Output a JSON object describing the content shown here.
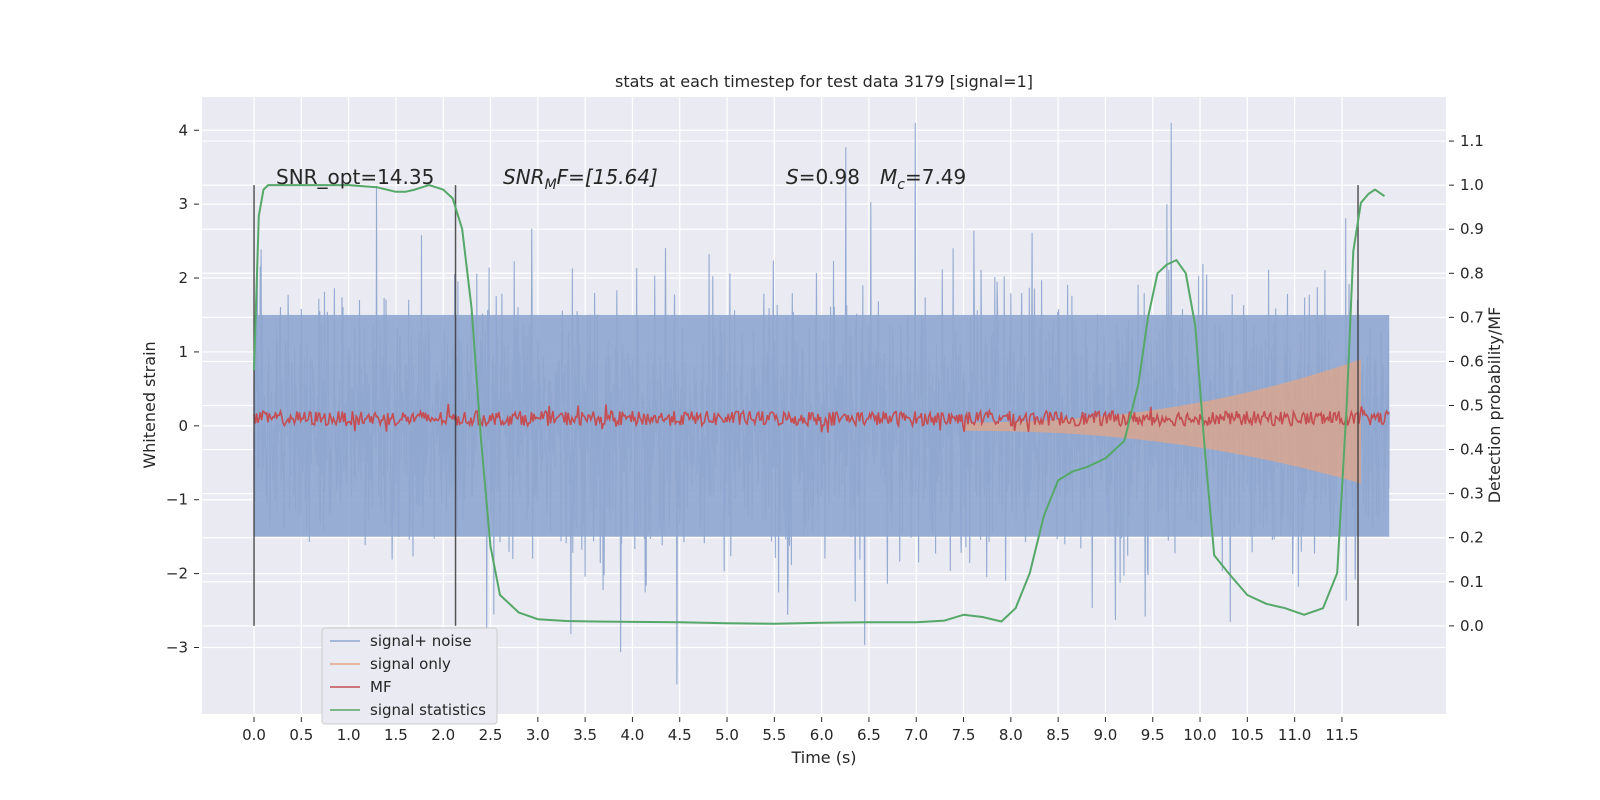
{
  "chart_data": {
    "type": "line",
    "title": "stats at each timestep for test data 3179 [signal=1]",
    "xlabel": "Time (s)",
    "ylabel_left": "Whitened strain",
    "ylabel_right": "Detection probability/MF",
    "xlim": [
      -0.55,
      12.6
    ],
    "ylim_left": [
      -3.9,
      4.45
    ],
    "ylim_right": [
      -0.2,
      1.2
    ],
    "grid": true,
    "legend_position": "lower-left",
    "x_ticks": [
      "0.0",
      "0.5",
      "1.0",
      "1.5",
      "2.0",
      "2.5",
      "3.0",
      "3.5",
      "4.0",
      "4.5",
      "5.0",
      "5.5",
      "6.0",
      "6.5",
      "7.0",
      "7.5",
      "8.0",
      "8.5",
      "9.0",
      "9.5",
      "10.0",
      "10.5",
      "11.0",
      "11.5"
    ],
    "y_ticks_left": [
      "4",
      "3",
      "2",
      "1",
      "0",
      "−1",
      "−2",
      "−3"
    ],
    "y_ticks_right": [
      "1.1",
      "1.0",
      "0.9",
      "0.8",
      "0.7",
      "0.6",
      "0.5",
      "0.4",
      "0.3",
      "0.2",
      "0.1",
      "0.0"
    ],
    "annotations": {
      "snr_opt": "SNR_opt=14.35",
      "snr_mf_base": "SNR",
      "snr_mf_sub": "M",
      "snr_mf_rest": "F=[15.64]",
      "s_base": "S",
      "s_val": "=0.98",
      "mc_base": "M",
      "mc_sub": "c",
      "mc_val": "=7.49"
    },
    "vertical_markers_s": [
      0.0,
      2.13,
      11.67
    ],
    "series": [
      {
        "name": "signal+ noise",
        "color": "#8fa6cf",
        "axis": "left",
        "envelope": {
          "x_range": [
            0.0,
            12.0
          ],
          "min": -3.5,
          "max": 4.1
        }
      },
      {
        "name": "signal only",
        "color": "#e8a582",
        "axis": "left",
        "x_range": [
          7.5,
          11.7
        ],
        "amplitude_start": 0.05,
        "amplitude_end": 1.0
      },
      {
        "name": "MF",
        "color": "#c44e52",
        "axis": "left",
        "x_range": [
          0.0,
          12.0
        ],
        "center": 0.1,
        "band": 0.1
      },
      {
        "name": "signal statistics",
        "color": "#55a868",
        "axis": "right",
        "x": [
          0.0,
          0.05,
          0.1,
          0.15,
          0.25,
          0.4,
          0.7,
          1.0,
          1.3,
          1.5,
          1.6,
          1.7,
          1.85,
          2.0,
          2.1,
          2.2,
          2.3,
          2.4,
          2.5,
          2.6,
          2.8,
          3.0,
          3.3,
          3.6,
          4.0,
          4.5,
          5.0,
          5.5,
          6.0,
          6.5,
          7.0,
          7.3,
          7.5,
          7.7,
          7.9,
          8.05,
          8.2,
          8.35,
          8.5,
          8.65,
          8.8,
          9.0,
          9.2,
          9.35,
          9.45,
          9.55,
          9.65,
          9.75,
          9.85,
          9.95,
          10.05,
          10.15,
          10.3,
          10.5,
          10.7,
          10.9,
          11.1,
          11.3,
          11.45,
          11.55,
          11.62,
          11.7,
          11.78,
          11.85,
          11.95
        ],
        "y": [
          0.58,
          0.93,
          0.99,
          1.0,
          1.0,
          1.0,
          1.0,
          1.0,
          0.995,
          0.985,
          0.985,
          0.99,
          1.0,
          0.99,
          0.97,
          0.9,
          0.72,
          0.42,
          0.18,
          0.07,
          0.03,
          0.015,
          0.011,
          0.01,
          0.009,
          0.008,
          0.006,
          0.005,
          0.007,
          0.008,
          0.008,
          0.012,
          0.025,
          0.02,
          0.01,
          0.04,
          0.12,
          0.25,
          0.33,
          0.35,
          0.36,
          0.38,
          0.42,
          0.55,
          0.7,
          0.8,
          0.82,
          0.83,
          0.8,
          0.68,
          0.4,
          0.16,
          0.12,
          0.07,
          0.05,
          0.04,
          0.025,
          0.04,
          0.12,
          0.5,
          0.85,
          0.96,
          0.98,
          0.99,
          0.975
        ]
      }
    ]
  }
}
